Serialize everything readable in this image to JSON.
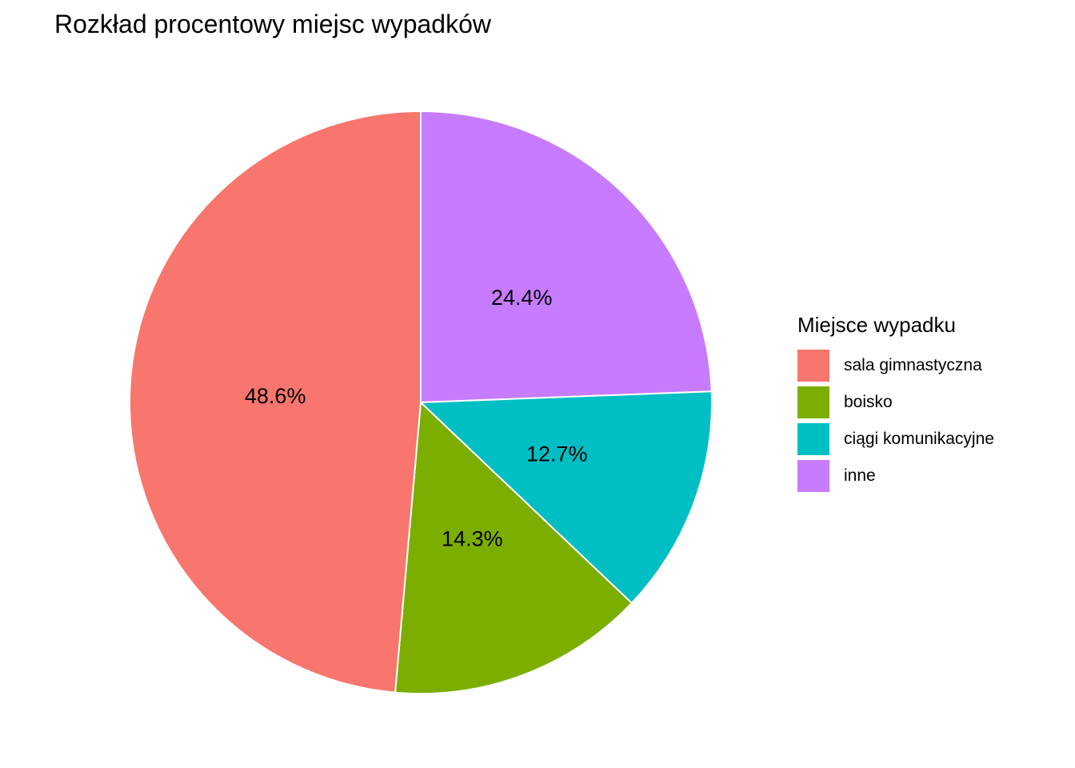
{
  "chart_data": {
    "type": "pie",
    "title": "Rozkład procentowy miejsc wypadków",
    "legend_title": "Miejsce wypadku",
    "legend_position": "right",
    "slices": [
      {
        "label": "sala gimnastyczna",
        "value": 48.6,
        "display": "48.6%",
        "color": "#F8766D"
      },
      {
        "label": "boisko",
        "value": 14.3,
        "display": "14.3%",
        "color": "#7CAE00"
      },
      {
        "label": "ciągi komunikacyjne",
        "value": 12.7,
        "display": "12.7%",
        "color": "#00BFC4"
      },
      {
        "label": "inne",
        "value": 24.4,
        "display": "24.4%",
        "color": "#C77CFF"
      }
    ]
  }
}
